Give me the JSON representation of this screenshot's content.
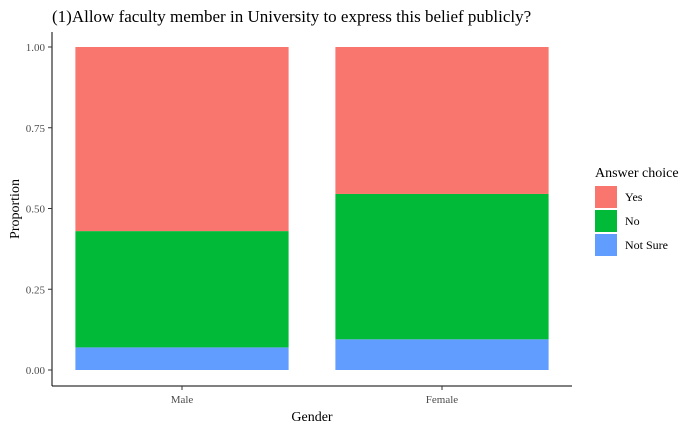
{
  "chart_data": {
    "type": "bar",
    "stacked": true,
    "title": "(1)Allow faculty member in University to express this belief publicly?",
    "xlabel": "Gender",
    "ylabel": "Proportion",
    "categories": [
      "Male",
      "Female"
    ],
    "ylim": [
      0,
      1
    ],
    "yticks": [
      "0.00",
      "0.25",
      "0.50",
      "0.75",
      "1.00"
    ],
    "grid": false,
    "legend": {
      "title": "Answer choice",
      "position": "right"
    },
    "series": [
      {
        "name": "Yes",
        "color": "#F8766D",
        "values": [
          0.57,
          0.455
        ]
      },
      {
        "name": "No",
        "color": "#00BA38",
        "values": [
          0.36,
          0.45
        ]
      },
      {
        "name": "Not Sure",
        "color": "#619CFF",
        "values": [
          0.07,
          0.095
        ]
      }
    ],
    "stack_order_bottom_to_top": [
      "Not Sure",
      "No",
      "Yes"
    ]
  }
}
